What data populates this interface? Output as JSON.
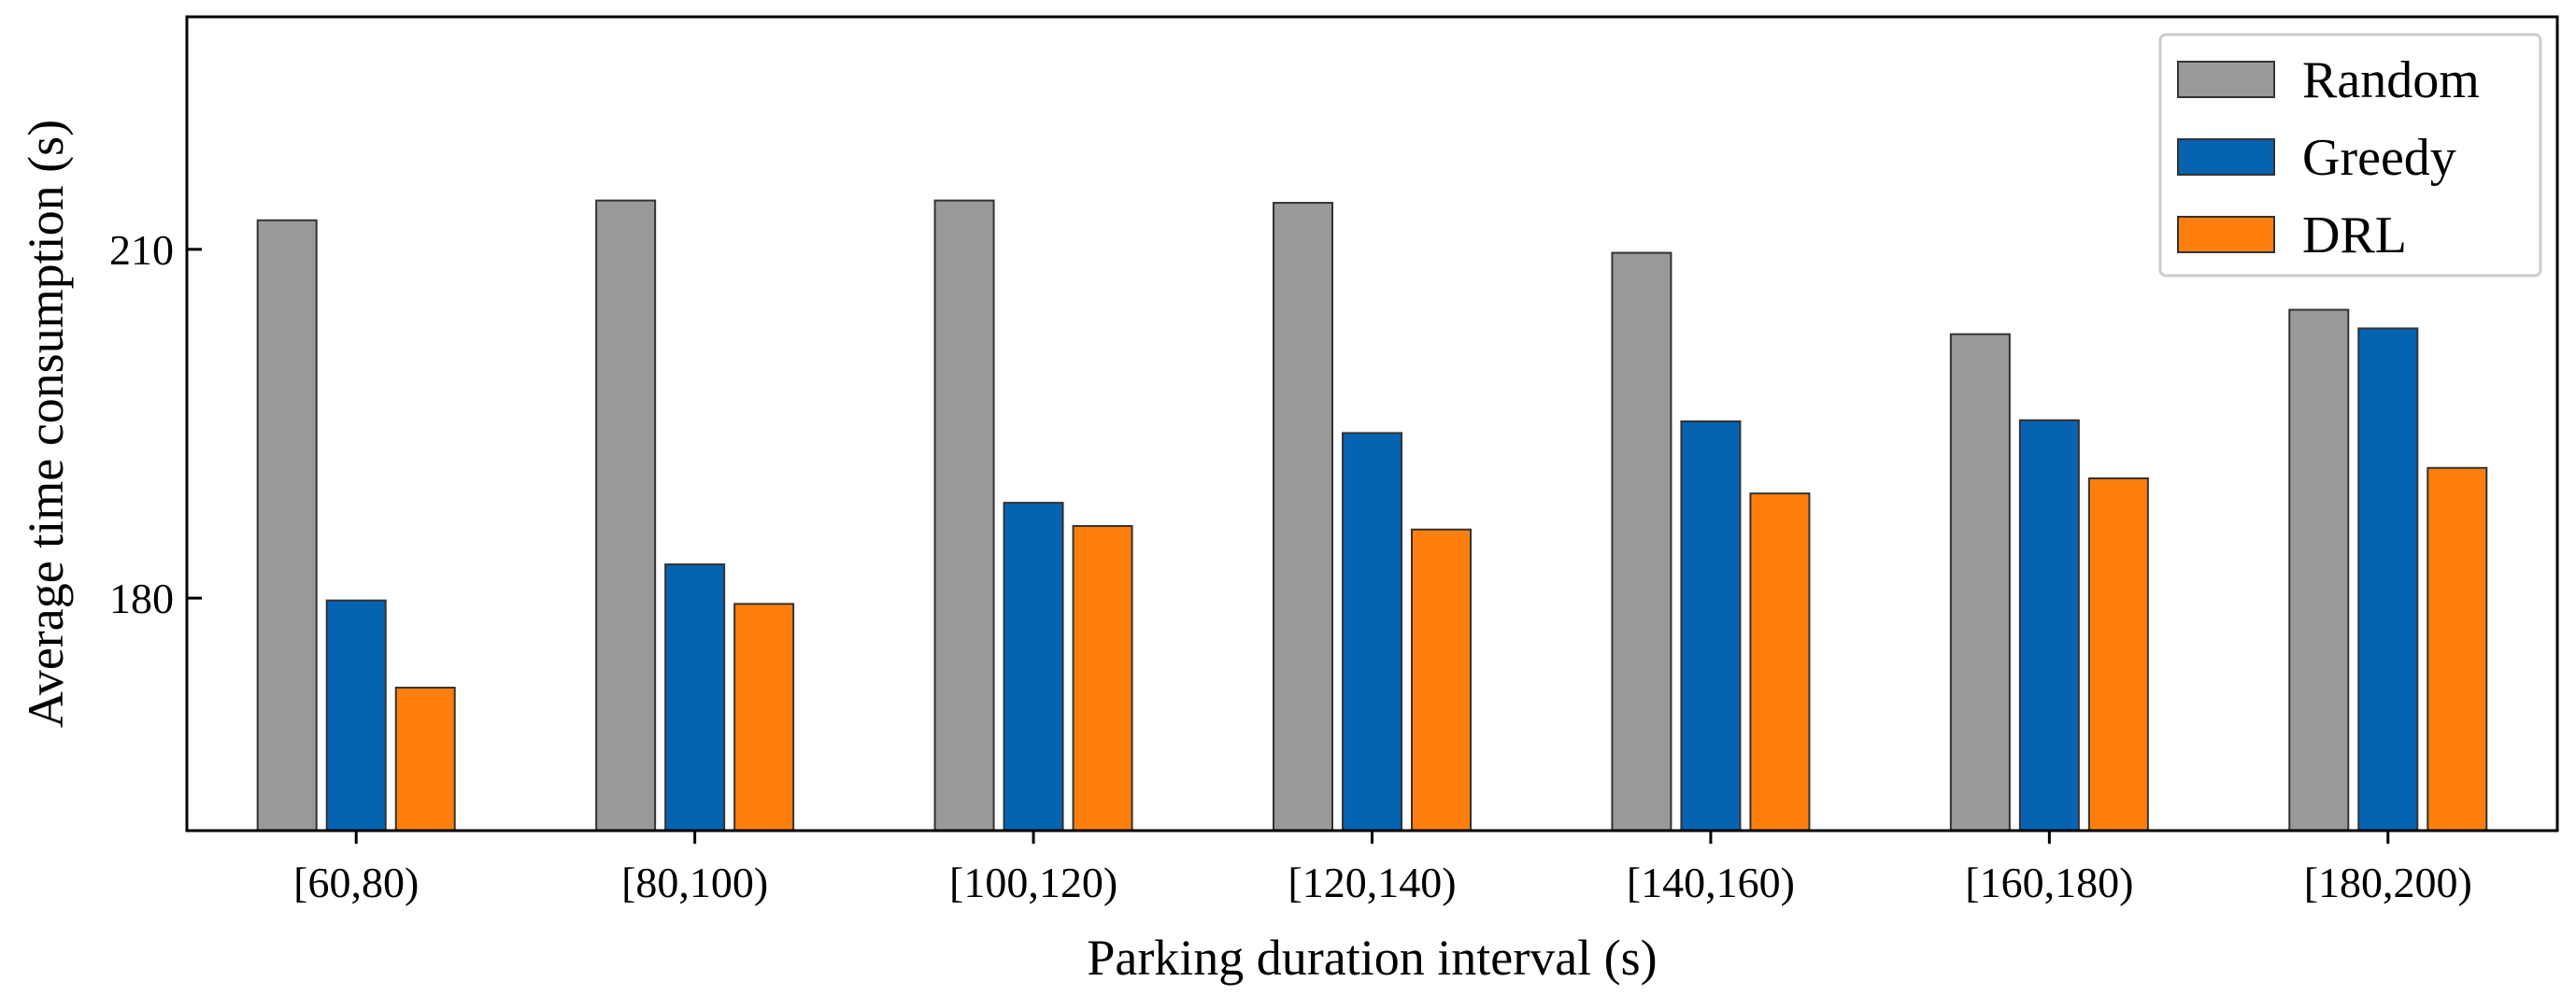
{
  "chart_data": {
    "type": "bar",
    "title": "",
    "xlabel": "Parking duration interval (s)",
    "ylabel": "Average time consumption (s)",
    "categories": [
      "[60,80)",
      "[80,100)",
      "[100,120)",
      "[120,140)",
      "[140,160)",
      "[160,180)",
      "[180,200)"
    ],
    "series": [
      {
        "name": "Random",
        "color": "#999999",
        "values": [
          212.5,
          214.2,
          214.2,
          214.0,
          209.7,
          202.7,
          204.8
        ]
      },
      {
        "name": "Greedy",
        "color": "#0563b1",
        "values": [
          179.8,
          182.9,
          188.2,
          194.2,
          195.2,
          195.3,
          203.2
        ]
      },
      {
        "name": "DRL",
        "color": "#ff7f0e",
        "values": [
          172.3,
          179.5,
          186.2,
          185.9,
          189.0,
          190.3,
          191.2
        ]
      }
    ],
    "ylim": [
      160,
      230
    ],
    "yticks": [
      180,
      210
    ],
    "legend_position": "top-right",
    "grid": false
  }
}
